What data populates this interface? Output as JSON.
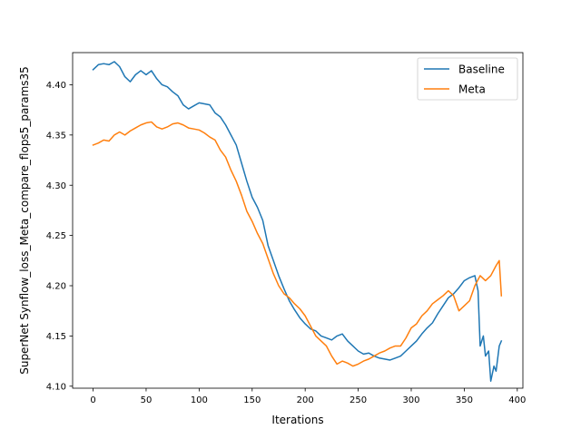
{
  "chart_data": {
    "type": "line",
    "title": "",
    "xlabel": "Iterations",
    "ylabel": "SuperNet Synflow_loss_Meta_compare_flops5_params35",
    "xlim": [
      -19.3,
      405.3
    ],
    "ylim": [
      4.098,
      4.432
    ],
    "xticks": [
      0,
      50,
      100,
      150,
      200,
      250,
      300,
      350,
      400
    ],
    "yticks": [
      4.1,
      4.15,
      4.2,
      4.25,
      4.3,
      4.35,
      4.4
    ],
    "xtick_labels": [
      "0",
      "50",
      "100",
      "150",
      "200",
      "250",
      "300",
      "350",
      "400"
    ],
    "ytick_labels": [
      "4.10",
      "4.15",
      "4.20",
      "4.25",
      "4.30",
      "4.35",
      "4.40"
    ],
    "grid": false,
    "legend_position": "upper right",
    "series": [
      {
        "name": "Baseline",
        "color": "#1f77b4",
        "x": [
          0,
          5,
          10,
          15,
          20,
          25,
          30,
          35,
          40,
          45,
          50,
          55,
          60,
          65,
          70,
          75,
          80,
          85,
          90,
          95,
          100,
          105,
          110,
          115,
          120,
          125,
          130,
          135,
          140,
          145,
          150,
          155,
          160,
          165,
          170,
          175,
          180,
          185,
          190,
          195,
          200,
          205,
          210,
          215,
          220,
          225,
          230,
          235,
          240,
          245,
          250,
          255,
          260,
          265,
          270,
          275,
          280,
          285,
          290,
          295,
          300,
          305,
          310,
          315,
          320,
          325,
          330,
          335,
          340,
          345,
          350,
          355,
          360,
          363,
          365,
          368,
          370,
          373,
          375,
          378,
          380,
          383,
          385
        ],
        "y": [
          4.415,
          4.42,
          4.421,
          4.42,
          4.423,
          4.418,
          4.408,
          4.403,
          4.41,
          4.414,
          4.41,
          4.414,
          4.406,
          4.4,
          4.398,
          4.393,
          4.389,
          4.38,
          4.376,
          4.379,
          4.382,
          4.381,
          4.38,
          4.372,
          4.368,
          4.36,
          4.35,
          4.34,
          4.322,
          4.304,
          4.288,
          4.278,
          4.265,
          4.24,
          4.225,
          4.21,
          4.197,
          4.185,
          4.176,
          4.168,
          4.162,
          4.157,
          4.155,
          4.15,
          4.148,
          4.146,
          4.15,
          4.152,
          4.145,
          4.14,
          4.135,
          4.132,
          4.133,
          4.13,
          4.128,
          4.127,
          4.126,
          4.128,
          4.13,
          4.135,
          4.14,
          4.145,
          4.152,
          4.158,
          4.163,
          4.172,
          4.18,
          4.188,
          4.192,
          4.198,
          4.205,
          4.208,
          4.21,
          4.195,
          4.14,
          4.15,
          4.13,
          4.135,
          4.105,
          4.12,
          4.115,
          4.14,
          4.145
        ]
      },
      {
        "name": "Meta",
        "color": "#ff7f0e",
        "x": [
          0,
          5,
          10,
          15,
          20,
          25,
          30,
          35,
          40,
          45,
          50,
          55,
          60,
          65,
          70,
          75,
          80,
          85,
          90,
          95,
          100,
          105,
          110,
          115,
          120,
          125,
          130,
          135,
          140,
          145,
          150,
          155,
          160,
          165,
          170,
          175,
          180,
          185,
          190,
          195,
          200,
          205,
          210,
          215,
          220,
          225,
          230,
          235,
          240,
          245,
          250,
          255,
          260,
          265,
          270,
          275,
          280,
          285,
          290,
          295,
          300,
          305,
          310,
          315,
          320,
          325,
          330,
          335,
          340,
          345,
          350,
          355,
          360,
          365,
          370,
          375,
          380,
          383,
          385
        ],
        "y": [
          4.34,
          4.342,
          4.345,
          4.344,
          4.35,
          4.353,
          4.35,
          4.354,
          4.357,
          4.36,
          4.362,
          4.363,
          4.358,
          4.356,
          4.358,
          4.361,
          4.362,
          4.36,
          4.357,
          4.356,
          4.355,
          4.352,
          4.348,
          4.345,
          4.335,
          4.328,
          4.315,
          4.304,
          4.29,
          4.274,
          4.264,
          4.252,
          4.242,
          4.227,
          4.212,
          4.2,
          4.192,
          4.188,
          4.182,
          4.177,
          4.17,
          4.16,
          4.15,
          4.145,
          4.14,
          4.13,
          4.122,
          4.125,
          4.123,
          4.12,
          4.122,
          4.125,
          4.127,
          4.13,
          4.133,
          4.135,
          4.138,
          4.14,
          4.14,
          4.148,
          4.158,
          4.162,
          4.17,
          4.175,
          4.182,
          4.186,
          4.19,
          4.195,
          4.19,
          4.175,
          4.18,
          4.185,
          4.2,
          4.21,
          4.205,
          4.21,
          4.22,
          4.225,
          4.19
        ]
      }
    ]
  }
}
